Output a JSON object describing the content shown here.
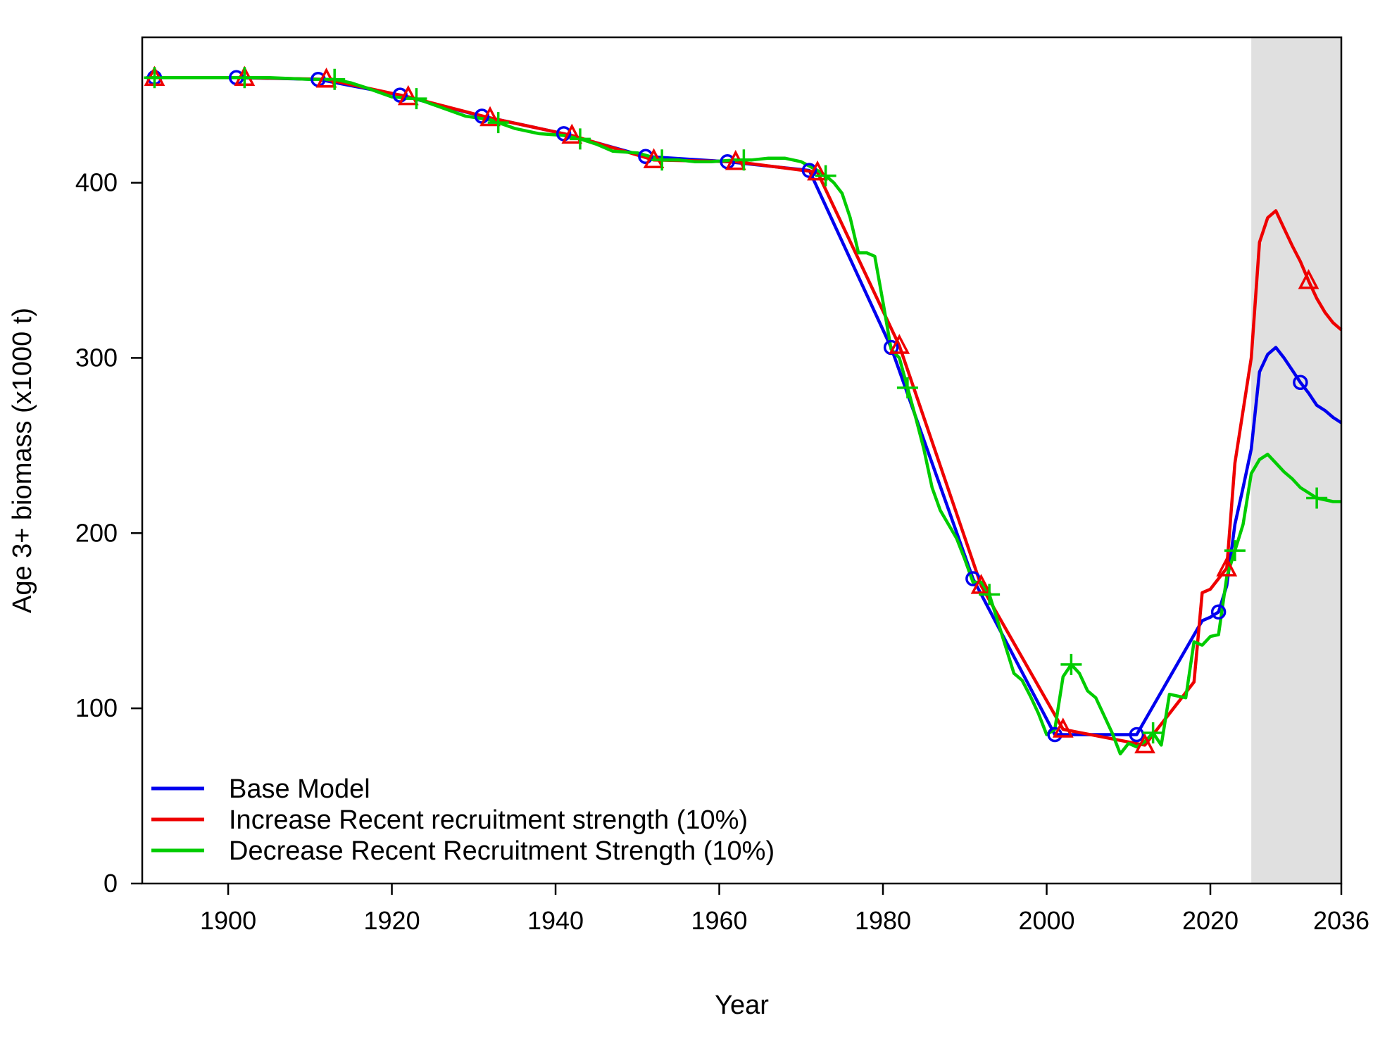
{
  "chart_data": {
    "type": "line",
    "title": "",
    "xlabel": "Year",
    "ylabel": "Age 3+ biomass (x1000 t)",
    "xlim": [
      1889.5,
      2036
    ],
    "ylim": [
      0,
      483
    ],
    "xticks": [
      1900,
      1920,
      1940,
      1960,
      1980,
      2000,
      2020,
      2036
    ],
    "yticks": [
      0,
      100,
      200,
      300,
      400
    ],
    "projection_shading": {
      "start": 2025,
      "end": 2036,
      "color": "#e0e0e0"
    },
    "grid": false,
    "legend_position": "bottom-left",
    "series": [
      {
        "name": "Base Model",
        "color": "#0000ee",
        "marker": "circle",
        "x": [
          1890,
          1901,
          1911,
          1921,
          1931,
          1941,
          1951,
          1961,
          1971,
          1981,
          1991,
          2001,
          2011,
          2019,
          2020,
          2021,
          2022,
          2023,
          2024,
          2025,
          2026,
          2027,
          2028,
          2029,
          2030,
          2031,
          2032,
          2033,
          2034,
          2035,
          2036
        ],
        "values": [
          460,
          460,
          459,
          450,
          438,
          428,
          415,
          412,
          407,
          306,
          174,
          85,
          85,
          150,
          152,
          155,
          170,
          205,
          226,
          248,
          292,
          302,
          306,
          300,
          293,
          286,
          280,
          273,
          270,
          266,
          263
        ],
        "marker_x": [
          1891,
          1901,
          1911,
          1921,
          1931,
          1941,
          1951,
          1961,
          1971,
          1981,
          1991,
          2001,
          2011,
          2021,
          2031
        ]
      },
      {
        "name": "Increase Recent recruitment strength (10%)",
        "color": "#ee0000",
        "marker": "triangle",
        "x": [
          1890,
          1902,
          1912,
          1922,
          1932,
          1942,
          1952,
          1962,
          1972,
          1982,
          1992,
          2002,
          2012,
          2018,
          2019,
          2020,
          2021,
          2022,
          2023,
          2024,
          2025,
          2026,
          2027,
          2028,
          2029,
          2030,
          2031,
          2032,
          2033,
          2034,
          2035,
          2036
        ],
        "values": [
          460,
          460,
          459,
          449,
          437,
          427,
          413,
          412,
          406,
          307,
          170,
          88,
          79,
          115,
          166,
          168,
          174,
          180,
          240,
          270,
          300,
          366,
          380,
          384,
          374,
          364,
          355,
          344,
          334,
          326,
          320,
          316
        ],
        "marker_x": [
          1891,
          1902,
          1912,
          1922,
          1932,
          1942,
          1952,
          1962,
          1972,
          1982,
          1992,
          2002,
          2012,
          2022,
          2032
        ]
      },
      {
        "name": "Decrease Recent Recruitment Strength (10%)",
        "color": "#00cc00",
        "marker": "plus",
        "x": [
          1890,
          1895,
          1900,
          1905,
          1910,
          1913,
          1915,
          1917,
          1920,
          1923,
          1926,
          1929,
          1932,
          1935,
          1938,
          1941,
          1943,
          1945,
          1947,
          1950,
          1953,
          1955,
          1957,
          1959,
          1962,
          1964,
          1966,
          1968,
          1970,
          1972,
          1973,
          1974,
          1975,
          1976,
          1977,
          1978,
          1979,
          1980,
          1981,
          1982,
          1983,
          1984,
          1985,
          1986,
          1987,
          1988,
          1989,
          1990,
          1991,
          1992,
          1993,
          1994,
          1995,
          1996,
          1997,
          1998,
          1999,
          2000,
          2001,
          2002,
          2003,
          2004,
          2005,
          2006,
          2007,
          2008,
          2009,
          2010,
          2011,
          2012,
          2013,
          2014,
          2015,
          2016,
          2017,
          2018,
          2019,
          2020,
          2021,
          2022,
          2023,
          2024,
          2025,
          2026,
          2027,
          2028,
          2029,
          2030,
          2031,
          2032,
          2033,
          2034,
          2035,
          2036
        ],
        "values": [
          460,
          460,
          460,
          460,
          459,
          459,
          457,
          454,
          449,
          448,
          443,
          438,
          436,
          431,
          428,
          427,
          425,
          422,
          418,
          417,
          413,
          413,
          412,
          412,
          413,
          413,
          414,
          414,
          412,
          407,
          404,
          400,
          394,
          380,
          360,
          360,
          358,
          332,
          305,
          300,
          283,
          266,
          248,
          226,
          213,
          205,
          197,
          185,
          172,
          172,
          165,
          150,
          135,
          120,
          116,
          107,
          97,
          85,
          88,
          118,
          125,
          120,
          110,
          106,
          96,
          86,
          74,
          80,
          78,
          81,
          86,
          79,
          108,
          107,
          106,
          138,
          136,
          141,
          142,
          175,
          190,
          205,
          234,
          242,
          245,
          240,
          235,
          231,
          226,
          223,
          220,
          219,
          218,
          218
        ],
        "marker_x": [
          1891,
          1902,
          1913,
          1923,
          1933,
          1943,
          1953,
          1963,
          1973,
          1983,
          1993,
          2003,
          2013,
          2023,
          2033
        ]
      }
    ]
  }
}
